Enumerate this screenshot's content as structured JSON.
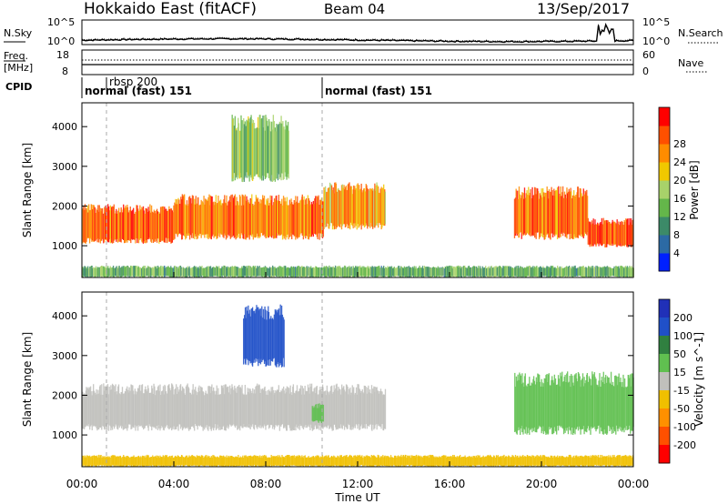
{
  "header": {
    "radar": "Hokkaido East (fitACF)",
    "beam": "Beam 04",
    "date": "13/Sep/2017"
  },
  "noise_panel": {
    "left_label": "N.Sky",
    "left_ticks": [
      "10^5",
      "10^0"
    ],
    "right_ticks": [
      "10^5",
      "10^0"
    ],
    "right_label": "N.Search"
  },
  "freq_panel": {
    "left_label_1": "Freq.",
    "left_label_2": "[MHz]",
    "left_ticks": [
      "18",
      "8"
    ],
    "right_ticks": [
      "60",
      "0"
    ],
    "right_label": "Nave"
  },
  "cpid_panel": {
    "label": "CPID",
    "segments": [
      {
        "text": "rbsp 200",
        "start_hour": 1.1
      },
      {
        "text": "normal (fast) 151",
        "start_hour": 0.0
      },
      {
        "text": "normal (fast) 151",
        "start_hour": 10.5
      }
    ]
  },
  "x_axis": {
    "label": "Time UT",
    "ticks": [
      "00:00",
      "04:00",
      "08:00",
      "12:00",
      "16:00",
      "20:00",
      "00:00"
    ]
  },
  "colors": {
    "power": [
      "#0020ff",
      "#2c6aa4",
      "#3c8a68",
      "#64b64a",
      "#a8d26a",
      "#f0c800",
      "#ff8c00",
      "#ff5000",
      "#ff0000"
    ],
    "velocity": [
      "#2030b8",
      "#2050c8",
      "#308040",
      "#60c050",
      "#c0c0bc",
      "#f0c000",
      "#ff9000",
      "#ff5000",
      "#ff0000"
    ],
    "ground": "#c0c0bc"
  },
  "chart_data": [
    {
      "type": "heatmap",
      "title": "Power",
      "xlabel": "",
      "ylabel": "Slant Range [km]",
      "xlim_hours": [
        0,
        24
      ],
      "ylim": [
        200,
        4600
      ],
      "yticks": [
        "1000",
        "2000",
        "3000",
        "4000"
      ],
      "colorbar_label": "Power [dB]",
      "colorbar_ticks": [
        "4",
        "8",
        "12",
        "16",
        "20",
        "24",
        "28"
      ],
      "colorbar_range": [
        0,
        32
      ],
      "regions": [
        {
          "t_start": 0.0,
          "t_end": 4.0,
          "r_low": 1050,
          "r_high": 2050,
          "value_db": 26
        },
        {
          "t_start": 4.0,
          "t_end": 10.5,
          "r_low": 1150,
          "r_high": 2300,
          "value_db": 25
        },
        {
          "t_start": 6.5,
          "t_end": 9.0,
          "r_low": 2600,
          "r_high": 4300,
          "value_db": 14
        },
        {
          "t_start": 10.5,
          "t_end": 13.2,
          "r_low": 1400,
          "r_high": 2600,
          "value_db": 22
        },
        {
          "t_start": 18.8,
          "t_end": 22.0,
          "r_low": 1150,
          "r_high": 2500,
          "value_db": 25
        },
        {
          "t_start": 22.0,
          "t_end": 24.0,
          "r_low": 950,
          "r_high": 1700,
          "value_db": 27
        },
        {
          "t_start": 0.0,
          "t_end": 24.0,
          "r_low": 200,
          "r_high": 500,
          "value_db": 12
        }
      ]
    },
    {
      "type": "heatmap",
      "title": "Velocity",
      "xlabel": "Time UT",
      "ylabel": "Slant Range [km]",
      "xlim_hours": [
        0,
        24
      ],
      "ylim": [
        200,
        4600
      ],
      "yticks": [
        "1000",
        "2000",
        "3000",
        "4000"
      ],
      "colorbar_label": "Velocity [m s^-1]",
      "colorbar_ticks": [
        "200",
        "100",
        "50",
        "15",
        "-15",
        "-50",
        "-100",
        "-200"
      ],
      "regions": [
        {
          "t_start": 0.0,
          "t_end": 13.2,
          "r_low": 1100,
          "r_high": 2300,
          "category": "ground"
        },
        {
          "t_start": 7.0,
          "t_end": 8.8,
          "r_low": 2700,
          "r_high": 4300,
          "velocity": 150
        },
        {
          "t_start": 10.0,
          "t_end": 10.5,
          "r_low": 1300,
          "r_high": 1800,
          "velocity": 30
        },
        {
          "t_start": 18.8,
          "t_end": 24.0,
          "r_low": 1000,
          "r_high": 2600,
          "velocity": 20
        },
        {
          "t_start": 0.0,
          "t_end": 24.0,
          "r_low": 200,
          "r_high": 500,
          "velocity": -20
        }
      ]
    }
  ]
}
